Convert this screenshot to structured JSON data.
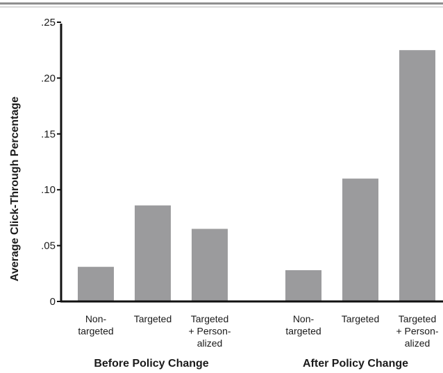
{
  "chart_data": {
    "type": "bar",
    "ylabel": "Average Click-Through Percentage",
    "ylim": [
      0,
      0.25
    ],
    "yticks": [
      {
        "value": 0,
        "label": "0"
      },
      {
        "value": 0.05,
        "label": ".05"
      },
      {
        "value": 0.1,
        "label": ".10"
      },
      {
        "value": 0.15,
        "label": ".15"
      },
      {
        "value": 0.2,
        "label": ".20"
      },
      {
        "value": 0.25,
        "label": ".25"
      }
    ],
    "groups": [
      {
        "label": "Before Policy Change",
        "bars": [
          {
            "category": [
              "Non-",
              "targeted"
            ],
            "value": 0.031
          },
          {
            "category": [
              "Targeted"
            ],
            "value": 0.086
          },
          {
            "category": [
              "Targeted",
              "+ Person-",
              "alized"
            ],
            "value": 0.065
          }
        ]
      },
      {
        "label": "After Policy Change",
        "bars": [
          {
            "category": [
              "Non-",
              "targeted"
            ],
            "value": 0.028
          },
          {
            "category": [
              "Targeted"
            ],
            "value": 0.11
          },
          {
            "category": [
              "Targeted",
              "+ Person-",
              "alized"
            ],
            "value": 0.225
          }
        ]
      }
    ],
    "grid": false,
    "colors": {
      "bar": "#9b9b9d",
      "axis": "#111111",
      "rule": "#7a7a7a"
    }
  }
}
